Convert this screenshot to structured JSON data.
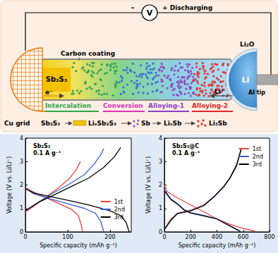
{
  "diagram": {
    "voltmeter": "V",
    "minus": "-",
    "plus_label": "+ Discharging",
    "carbon_coating": "Carbon coating",
    "electrode": "Sb₂S₃",
    "electron": "e⁻",
    "li2o": "Li₂O",
    "li": "Li",
    "al_tip": "Al tip",
    "li_ion": "Li⁺",
    "cu_grid": "Cu grid",
    "stages": [
      {
        "label": "Intercalation",
        "color": "#2ea84a"
      },
      {
        "label": "Conversion",
        "color": "#d936b8"
      },
      {
        "label": "Alloying-1",
        "color": "#8a3fc4"
      },
      {
        "label": "Alloying-2",
        "color": "#e0262a"
      }
    ],
    "species": [
      "Sb₂S₃",
      "LiₓSb₂S₃",
      "Sb",
      "LiₓSb",
      "Li₃Sb"
    ]
  },
  "chart_data": [
    {
      "type": "line",
      "title": "Sb₂S₃",
      "subtitle": "0.1 A g⁻¹",
      "x_label": "Specific capacity (mAh g⁻¹)",
      "y_label": "Voltage (V vs. Li/Li⁺)",
      "xlim": [
        0,
        250
      ],
      "xticks": [
        0,
        100,
        200
      ],
      "ylim": [
        0,
        4
      ],
      "yticks": [
        0,
        1,
        2,
        3,
        4
      ],
      "grid": false,
      "legend": "lower right",
      "series": [
        {
          "name": "1st",
          "color": "#e8423f",
          "values": [
            [
              0,
              1.9
            ],
            [
              10,
              1.78
            ],
            [
              20,
              1.7
            ],
            [
              50,
              1.45
            ],
            [
              80,
              1.2
            ],
            [
              110,
              0.95
            ],
            [
              125,
              0.7
            ],
            [
              132,
              0.3
            ],
            [
              135,
              0
            ],
            null,
            [
              0,
              0.85
            ],
            [
              20,
              1.1
            ],
            [
              50,
              1.5
            ],
            [
              80,
              1.9
            ],
            [
              105,
              2.3
            ],
            [
              120,
              2.65
            ],
            [
              130,
              3.0
            ]
          ]
        },
        {
          "name": "2nd",
          "color": "#3b5fd6",
          "values": [
            [
              0,
              1.85
            ],
            [
              20,
              1.62
            ],
            [
              60,
              1.4
            ],
            [
              100,
              1.2
            ],
            [
              140,
              1.0
            ],
            [
              165,
              0.8
            ],
            [
              178,
              0.45
            ],
            [
              185,
              0
            ],
            null,
            [
              0,
              0.9
            ],
            [
              25,
              1.2
            ],
            [
              60,
              1.6
            ],
            [
              100,
              2.0
            ],
            [
              140,
              2.45
            ],
            [
              165,
              2.95
            ],
            [
              180,
              3.35
            ],
            [
              185,
              3.55
            ]
          ]
        },
        {
          "name": "3rd",
          "color": "#000000",
          "values": [
            [
              0,
              1.85
            ],
            [
              20,
              1.66
            ],
            [
              60,
              1.5
            ],
            [
              100,
              1.35
            ],
            [
              150,
              1.15
            ],
            [
              200,
              0.9
            ],
            [
              225,
              0.7
            ],
            [
              238,
              0.4
            ],
            [
              245,
              0
            ],
            null,
            [
              0,
              0.9
            ],
            [
              30,
              1.25
            ],
            [
              70,
              1.6
            ],
            [
              110,
              1.95
            ],
            [
              150,
              2.3
            ],
            [
              185,
              2.75
            ],
            [
              210,
              3.2
            ],
            [
              225,
              3.6
            ]
          ]
        }
      ]
    },
    {
      "type": "line",
      "title": "Sb₂S₃@C",
      "subtitle": "0.1 A g⁻¹",
      "x_label": "Specific capacity (mAh g⁻¹)",
      "y_label": "Voltage (V vs. Li/Li⁺)",
      "xlim": [
        0,
        800
      ],
      "xticks": [
        0,
        200,
        400,
        600,
        800
      ],
      "ylim": [
        0,
        4
      ],
      "yticks": [
        0,
        1,
        2,
        3,
        4
      ],
      "grid": false,
      "legend": "upper right",
      "series": [
        {
          "name": "1st",
          "color": "#e8423f",
          "values": [
            [
              0,
              2.0
            ],
            [
              20,
              1.72
            ],
            [
              100,
              1.45
            ],
            [
              200,
              1.15
            ],
            [
              300,
              0.85
            ],
            [
              400,
              0.55
            ],
            [
              500,
              0.32
            ],
            [
              600,
              0.15
            ],
            [
              690,
              0.03
            ],
            null,
            [
              0,
              0.1
            ],
            [
              50,
              0.55
            ],
            [
              100,
              0.8
            ],
            [
              200,
              0.92
            ],
            [
              300,
              1.15
            ],
            [
              380,
              1.5
            ],
            [
              450,
              1.9
            ],
            [
              500,
              2.3
            ],
            [
              550,
              2.8
            ],
            [
              585,
              3.55
            ]
          ]
        },
        {
          "name": "2nd",
          "color": "#3b5fd6",
          "values": [
            [
              0,
              1.8
            ],
            [
              50,
              1.4
            ],
            [
              100,
              1.2
            ],
            [
              150,
              0.95
            ],
            [
              200,
              0.82
            ],
            [
              300,
              0.7
            ],
            [
              400,
              0.55
            ],
            [
              480,
              0.32
            ],
            [
              560,
              0.08
            ],
            [
              580,
              0.03
            ],
            null,
            [
              0,
              0.1
            ],
            [
              50,
              0.5
            ],
            [
              100,
              0.78
            ],
            [
              200,
              0.9
            ],
            [
              300,
              1.12
            ],
            [
              380,
              1.5
            ],
            [
              450,
              1.92
            ],
            [
              500,
              2.3
            ],
            [
              550,
              2.85
            ],
            [
              585,
              3.55
            ]
          ]
        },
        {
          "name": "3rd",
          "color": "#000000",
          "values": [
            [
              0,
              1.75
            ],
            [
              50,
              1.38
            ],
            [
              100,
              1.18
            ],
            [
              150,
              0.93
            ],
            [
              200,
              0.8
            ],
            [
              300,
              0.68
            ],
            [
              400,
              0.55
            ],
            [
              480,
              0.3
            ],
            [
              560,
              0.07
            ],
            [
              575,
              0.03
            ],
            null,
            [
              0,
              0.1
            ],
            [
              50,
              0.5
            ],
            [
              100,
              0.78
            ],
            [
              200,
              0.9
            ],
            [
              300,
              1.12
            ],
            [
              380,
              1.52
            ],
            [
              450,
              1.93
            ],
            [
              500,
              2.32
            ],
            [
              550,
              2.87
            ],
            [
              585,
              3.55
            ]
          ]
        }
      ]
    }
  ]
}
